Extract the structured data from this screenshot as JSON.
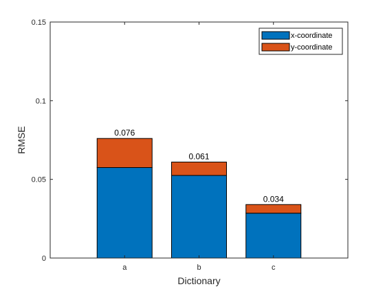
{
  "chart_data": {
    "type": "bar",
    "stacked": true,
    "categories": [
      "a",
      "b",
      "c"
    ],
    "series": [
      {
        "name": "x-coordinate",
        "values": [
          0.0575,
          0.0525,
          0.0285
        ],
        "color": "#0072BD"
      },
      {
        "name": "y-coordinate",
        "values": [
          0.0185,
          0.0085,
          0.0055
        ],
        "color": "#D95319"
      }
    ],
    "totals_labels": [
      "0.076",
      "0.061",
      "0.034"
    ],
    "xlabel": "Dictionary",
    "ylabel": "RMSE",
    "ylim": [
      0,
      0.15
    ],
    "yticks": [
      "0",
      "0.05",
      "0.1",
      "0.15"
    ],
    "grid": false,
    "legend_position": "top-right"
  }
}
